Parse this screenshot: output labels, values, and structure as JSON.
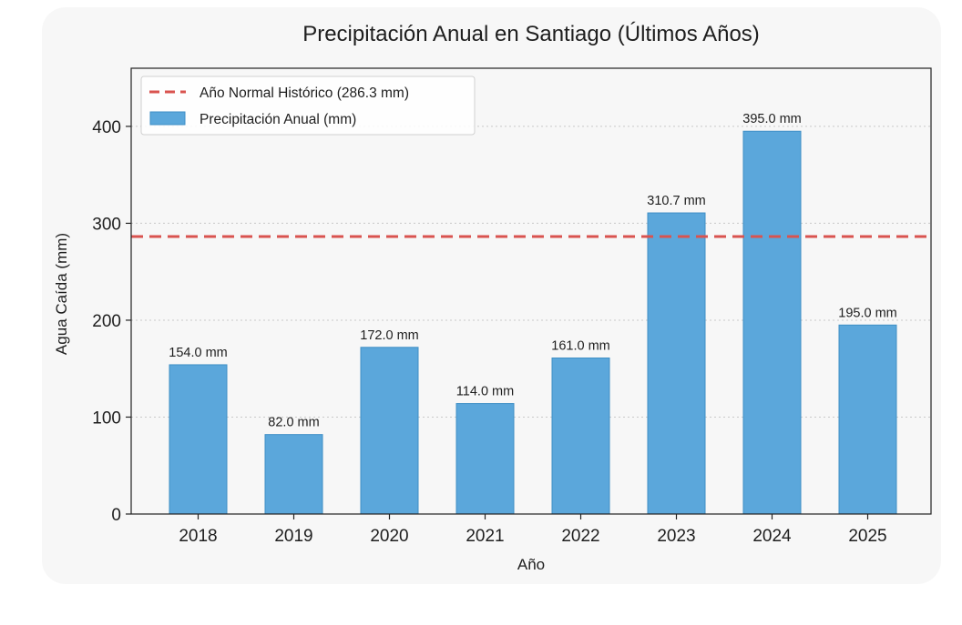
{
  "chart_data": {
    "type": "bar",
    "title": "Precipitación Anual en Santiago (Últimos Años)",
    "xlabel": "Año",
    "ylabel": "Agua Caída (mm)",
    "categories": [
      "2018",
      "2019",
      "2020",
      "2021",
      "2022",
      "2023",
      "2024",
      "2025"
    ],
    "series": [
      {
        "name": "Precipitación Anual (mm)",
        "values": [
          154.0,
          82.0,
          172.0,
          114.0,
          161.0,
          310.7,
          395.0,
          195.0
        ],
        "color": "#5ba7db",
        "edge_color": "#3f8fc6"
      }
    ],
    "value_labels": [
      "154.0 mm",
      "82.0 mm",
      "172.0 mm",
      "114.0 mm",
      "161.0 mm",
      "310.7 mm",
      "395.0 mm",
      "195.0 mm"
    ],
    "reference_line": {
      "name": "Año Normal Histórico (286.3 mm)",
      "value": 286.3,
      "color": "#d9534f",
      "style": "dashed"
    },
    "ylim": [
      0,
      460
    ],
    "yticks": [
      0,
      100,
      200,
      300,
      400
    ],
    "grid": "horizontal-dotted",
    "legend_position": "top-left"
  }
}
